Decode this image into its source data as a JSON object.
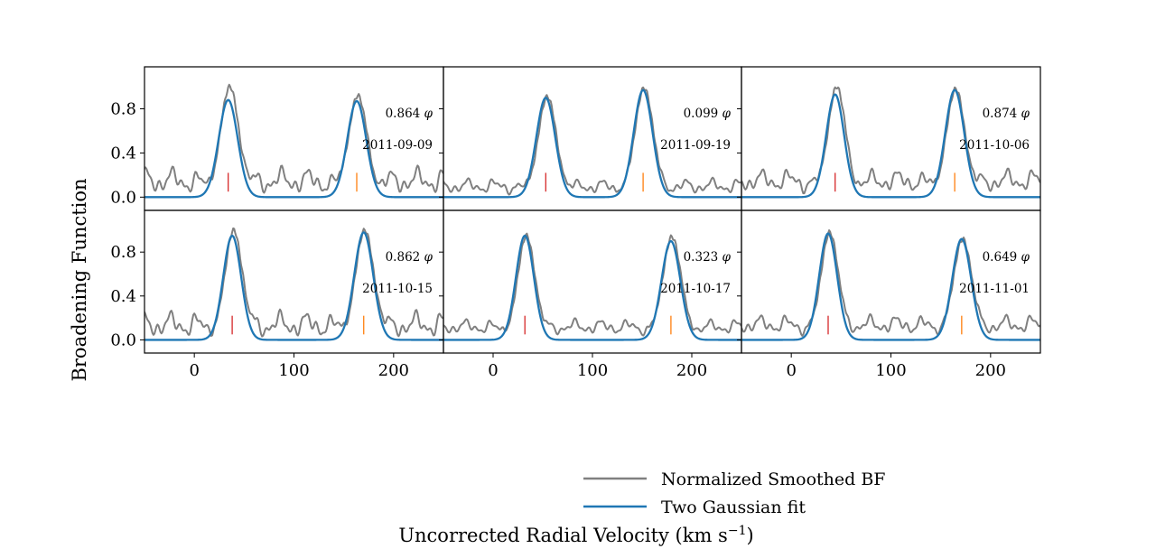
{
  "chart_data": {
    "type": "line",
    "title": "",
    "xlabel": "Uncorrected Radial Velocity (km s",
    "xlabel_sup": "−1",
    "xlabel_tail": ")",
    "ylabel": "Broadening Function",
    "xlim": [
      -50,
      250
    ],
    "ylim": [
      -0.12,
      1.18
    ],
    "x_ticks": [
      0,
      100,
      200
    ],
    "x_tick_labels": [
      "0",
      "100",
      "200"
    ],
    "y_ticks": [
      0.0,
      0.4,
      0.8
    ],
    "y_tick_labels": [
      "0.0",
      "0.4",
      "0.8"
    ],
    "grid": false,
    "legend_position": "bottom-right",
    "colors": {
      "bf": "#808080",
      "fit": "#1f77b4",
      "primary_marker": "#d62728",
      "secondary_marker": "#ff7f0e"
    },
    "series": [
      {
        "name": "Normalized Smoothed BF",
        "key": "bf"
      },
      {
        "name": "Two Gaussian fit",
        "key": "fit"
      }
    ],
    "panels": [
      {
        "phase": "0.864",
        "date": "2011-09-09",
        "peak1": {
          "center": 34,
          "amp": 0.88,
          "sigma": 9.5,
          "bf_amp": 1.0
        },
        "peak2": {
          "center": 163,
          "amp": 0.87,
          "sigma": 9.5,
          "bf_amp": 0.92
        },
        "markers": [
          34,
          163
        ],
        "noise": {
          "base": 0.15,
          "amp": 0.07,
          "phase": 0.3
        }
      },
      {
        "phase": "0.099",
        "date": "2011-09-19",
        "peak1": {
          "center": 53,
          "amp": 0.9,
          "sigma": 9.5,
          "bf_amp": 0.91
        },
        "peak2": {
          "center": 151,
          "amp": 0.97,
          "sigma": 9.5,
          "bf_amp": 0.99
        },
        "markers": [
          53,
          151
        ],
        "noise": {
          "base": 0.1,
          "amp": 0.04,
          "phase": 1.1
        }
      },
      {
        "phase": "0.874",
        "date": "2011-10-06",
        "peak1": {
          "center": 44,
          "amp": 0.93,
          "sigma": 9.0,
          "bf_amp": 1.0
        },
        "peak2": {
          "center": 164,
          "amp": 0.97,
          "sigma": 9.5,
          "bf_amp": 0.98
        },
        "markers": [
          44,
          164
        ],
        "noise": {
          "base": 0.15,
          "amp": 0.06,
          "phase": 2.0
        }
      },
      {
        "phase": "0.862",
        "date": "2011-10-15",
        "peak1": {
          "center": 38,
          "amp": 0.95,
          "sigma": 9.0,
          "bf_amp": 1.0
        },
        "peak2": {
          "center": 170,
          "amp": 0.98,
          "sigma": 9.5,
          "bf_amp": 1.0
        },
        "markers": [
          38,
          170
        ],
        "noise": {
          "base": 0.14,
          "amp": 0.07,
          "phase": 0.7
        }
      },
      {
        "phase": "0.323",
        "date": "2011-10-17",
        "peak1": {
          "center": 32,
          "amp": 0.95,
          "sigma": 9.0,
          "bf_amp": 0.95
        },
        "peak2": {
          "center": 179,
          "amp": 0.9,
          "sigma": 9.5,
          "bf_amp": 0.94
        },
        "markers": [
          32,
          179
        ],
        "noise": {
          "base": 0.12,
          "amp": 0.04,
          "phase": 1.6
        }
      },
      {
        "phase": "0.649",
        "date": "2011-11-01",
        "peak1": {
          "center": 37,
          "amp": 0.97,
          "sigma": 9.0,
          "bf_amp": 0.98
        },
        "peak2": {
          "center": 171,
          "amp": 0.92,
          "sigma": 9.5,
          "bf_amp": 0.92
        },
        "markers": [
          37,
          171
        ],
        "noise": {
          "base": 0.14,
          "amp": 0.05,
          "phase": 2.4
        }
      }
    ]
  }
}
